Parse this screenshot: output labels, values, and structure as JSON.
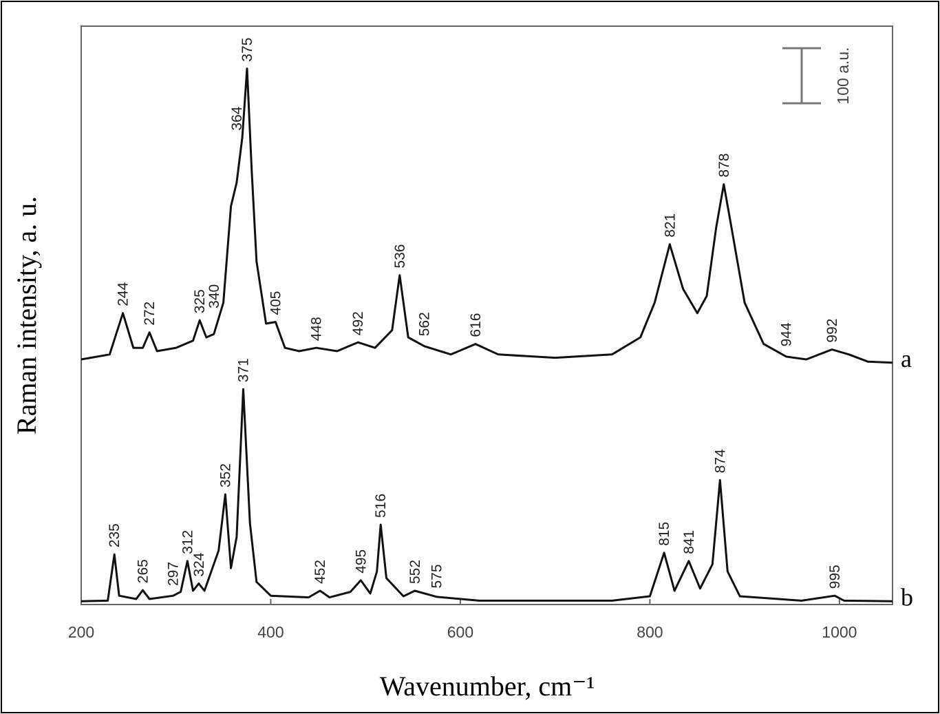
{
  "chart_data": {
    "type": "line",
    "xlabel": "Wavenumber, cm⁻¹",
    "ylabel": "Raman intensity, a. u.",
    "xlim": [
      200,
      1056
    ],
    "ylim": [
      0,
      1050
    ],
    "xticks": [
      200,
      400,
      600,
      800,
      1000
    ],
    "scale_bar": {
      "value": 100,
      "label": "100 a.u."
    },
    "series": [
      {
        "name": "a",
        "color": "#111111",
        "x": [
          200,
          230,
          244,
          255,
          265,
          272,
          280,
          300,
          318,
          325,
          332,
          340,
          350,
          358,
          364,
          370,
          375,
          380,
          385,
          395,
          405,
          415,
          430,
          448,
          470,
          492,
          510,
          528,
          536,
          545,
          562,
          590,
          616,
          640,
          700,
          760,
          790,
          805,
          821,
          835,
          850,
          860,
          870,
          878,
          886,
          900,
          920,
          944,
          965,
          992,
          1010,
          1030,
          1056
        ],
        "values": [
          445,
          454,
          529,
          466,
          466,
          494,
          460,
          466,
          479,
          516,
          485,
          491,
          548,
          723,
          766,
          848,
          973,
          785,
          623,
          510,
          513,
          466,
          460,
          466,
          460,
          476,
          466,
          498,
          598,
          485,
          469,
          454,
          473,
          454,
          448,
          454,
          485,
          548,
          654,
          573,
          529,
          560,
          685,
          763,
          685,
          548,
          473,
          450,
          445,
          463,
          454,
          441,
          439
        ],
        "peaks": [
          244,
          272,
          325,
          340,
          364,
          375,
          405,
          448,
          492,
          536,
          562,
          616,
          821,
          878,
          944,
          992
        ]
      },
      {
        "name": "b",
        "color": "#111111",
        "x": [
          200,
          228,
          235,
          240,
          258,
          265,
          272,
          297,
          305,
          312,
          318,
          324,
          330,
          345,
          352,
          358,
          364,
          371,
          378,
          385,
          400,
          440,
          452,
          462,
          484,
          495,
          505,
          512,
          516,
          522,
          540,
          552,
          575,
          620,
          760,
          800,
          815,
          826,
          841,
          853,
          866,
          874,
          882,
          895,
          960,
          995,
          1005,
          1056
        ],
        "values": [
          6,
          7,
          91,
          16,
          10,
          26,
          10,
          16,
          23,
          79,
          25,
          38,
          25,
          98,
          200,
          66,
          123,
          391,
          148,
          41,
          16,
          13,
          25,
          13,
          23,
          44,
          20,
          60,
          145,
          48,
          15,
          25,
          14,
          7,
          7,
          15,
          94,
          25,
          79,
          29,
          73,
          226,
          60,
          15,
          7,
          16,
          7,
          6
        ],
        "peaks": [
          235,
          265,
          297,
          312,
          324,
          352,
          371,
          452,
          495,
          516,
          552,
          575,
          815,
          841,
          874,
          995
        ]
      }
    ]
  }
}
